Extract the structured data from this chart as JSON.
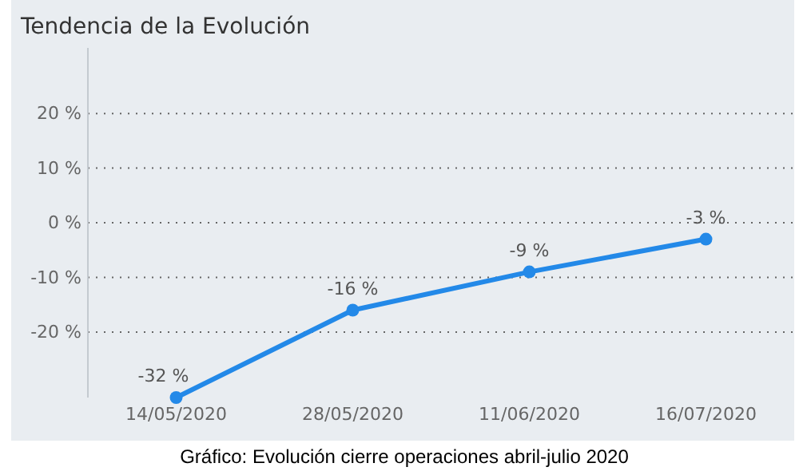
{
  "chart_data": {
    "type": "line",
    "title": "Tendencia de la Evolución",
    "categories": [
      "14/05/2020",
      "28/05/2020",
      "11/06/2020",
      "16/07/2020"
    ],
    "series": [
      {
        "color": "#2389e8",
        "values": [
          -32,
          -16,
          -9,
          -3
        ],
        "value_labels": [
          "-32 %",
          "-16 %",
          "-9 %",
          "-3 %"
        ]
      }
    ],
    "ylim": [
      -32,
      32
    ],
    "yticks": [
      {
        "value": -20,
        "label": "-20 %"
      },
      {
        "value": -10,
        "label": "-10 %"
      },
      {
        "value": 0,
        "label": "0 %"
      },
      {
        "value": 10,
        "label": "10 %"
      },
      {
        "value": 20,
        "label": "20 %"
      }
    ],
    "grid": "y",
    "marker": "circle",
    "line_style": "solid",
    "annotations": [
      "Gráfico: Evolución cierre operaciones abril-julio 2020"
    ]
  }
}
